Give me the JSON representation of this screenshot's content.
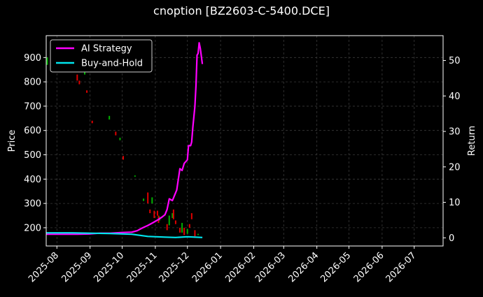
{
  "chart_data": {
    "type": "line",
    "title": "cnoption [BZ2603-C-5400.DCE]",
    "ylabel_left": "Price",
    "ylabel_right": "Return",
    "xlabel": "",
    "x_ticks": [
      "2025-08",
      "2025-09",
      "2025-10",
      "2025-11",
      "2025-12",
      "2026-01",
      "2026-02",
      "2026-03",
      "2026-04",
      "2026-05",
      "2026-06",
      "2026-07"
    ],
    "xlim": [
      "2025-07-22",
      "2026-07-28"
    ],
    "ylim_left": [
      125,
      990
    ],
    "yticks_left": [
      200,
      300,
      400,
      500,
      600,
      700,
      800,
      900
    ],
    "ylim_right": [
      -2.3,
      57
    ],
    "yticks_right": [
      0,
      10,
      20,
      30,
      40,
      50
    ],
    "grid": true,
    "legend_position": "top-left",
    "colors": {
      "background": "#000000",
      "up_candle": "#00b000",
      "down_candle": "#e00000",
      "strategy": "#ff00ff",
      "buy_hold": "#00e5ee",
      "grid": "#3a3a3a"
    },
    "series": [
      {
        "name": "AI Strategy",
        "axis": "right",
        "points": [
          [
            "2025-07-22",
            1.0
          ],
          [
            "2025-08-05",
            1.0
          ],
          [
            "2025-08-20",
            1.0
          ],
          [
            "2025-09-01",
            1.1
          ],
          [
            "2025-09-10",
            1.3
          ],
          [
            "2025-09-20",
            1.3
          ],
          [
            "2025-10-01",
            1.5
          ],
          [
            "2025-10-10",
            1.6
          ],
          [
            "2025-10-15",
            2.0
          ],
          [
            "2025-10-20",
            2.8
          ],
          [
            "2025-10-25",
            3.5
          ],
          [
            "2025-10-30",
            4.3
          ],
          [
            "2025-11-03",
            5.0
          ],
          [
            "2025-11-07",
            5.8
          ],
          [
            "2025-11-10",
            6.5
          ],
          [
            "2025-11-12",
            8.0
          ],
          [
            "2025-11-14",
            11.0
          ],
          [
            "2025-11-17",
            10.5
          ],
          [
            "2025-11-19",
            12.0
          ],
          [
            "2025-11-21",
            13.5
          ],
          [
            "2025-11-24",
            19.5
          ],
          [
            "2025-11-26",
            19.0
          ],
          [
            "2025-11-28",
            21.0
          ],
          [
            "2025-12-01",
            22.0
          ],
          [
            "2025-12-02",
            26.0
          ],
          [
            "2025-12-04",
            26.0
          ],
          [
            "2025-12-05",
            27.0
          ],
          [
            "2025-12-06",
            31.0
          ],
          [
            "2025-12-08",
            37.0
          ],
          [
            "2025-12-09",
            43.0
          ],
          [
            "2025-12-10",
            51.5
          ],
          [
            "2025-12-11",
            52.0
          ],
          [
            "2025-12-12",
            55.0
          ],
          [
            "2025-12-13",
            53.5
          ],
          [
            "2025-12-15",
            49.0
          ]
        ]
      },
      {
        "name": "Buy-and-Hold",
        "axis": "right",
        "points": [
          [
            "2025-07-22",
            1.4
          ],
          [
            "2025-08-15",
            1.4
          ],
          [
            "2025-09-01",
            1.3
          ],
          [
            "2025-09-20",
            1.2
          ],
          [
            "2025-10-10",
            1.0
          ],
          [
            "2025-10-25",
            0.4
          ],
          [
            "2025-11-10",
            0.2
          ],
          [
            "2025-11-20",
            0.1
          ],
          [
            "2025-12-01",
            0.3
          ],
          [
            "2025-12-15",
            0.1
          ]
        ]
      }
    ],
    "candles": [
      [
        "2025-07-23",
        870,
        900
      ],
      [
        "2025-08-20",
        830,
        805
      ],
      [
        "2025-08-22",
        805,
        790
      ],
      [
        "2025-08-27",
        830,
        860
      ],
      [
        "2025-08-29",
        765,
        755
      ],
      [
        "2025-09-03",
        640,
        630
      ],
      [
        "2025-09-19",
        645,
        660
      ],
      [
        "2025-09-25",
        595,
        580
      ],
      [
        "2025-09-29",
        560,
        570
      ],
      [
        "2025-10-02",
        495,
        480
      ],
      [
        "2025-10-13",
        410,
        415
      ],
      [
        "2025-10-21",
        310,
        320
      ],
      [
        "2025-10-25",
        345,
        300
      ],
      [
        "2025-10-27",
        275,
        260
      ],
      [
        "2025-10-29",
        300,
        325
      ],
      [
        "2025-10-31",
        270,
        240
      ],
      [
        "2025-11-03",
        270,
        250
      ],
      [
        "2025-11-04",
        250,
        220
      ],
      [
        "2025-11-05",
        230,
        245
      ],
      [
        "2025-11-12",
        215,
        190
      ],
      [
        "2025-11-14",
        210,
        250
      ],
      [
        "2025-11-17",
        240,
        260
      ],
      [
        "2025-11-18",
        275,
        235
      ],
      [
        "2025-11-20",
        230,
        215
      ],
      [
        "2025-11-24",
        200,
        180
      ],
      [
        "2025-11-26",
        180,
        220
      ],
      [
        "2025-11-28",
        200,
        170
      ],
      [
        "2025-12-01",
        175,
        195
      ],
      [
        "2025-12-03",
        215,
        200
      ],
      [
        "2025-12-05",
        260,
        235
      ],
      [
        "2025-12-08",
        190,
        165
      ],
      [
        "2025-12-11",
        170,
        175
      ]
    ]
  }
}
